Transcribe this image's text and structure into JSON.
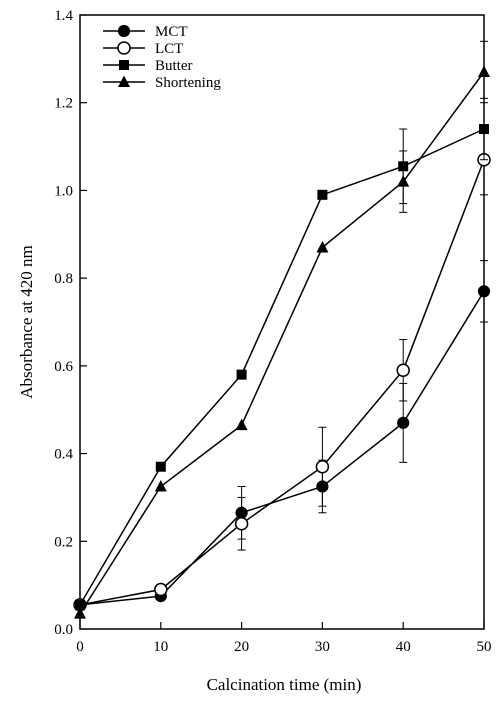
{
  "chart_data": {
    "type": "line",
    "title": "",
    "xlabel": "Calcination time (min)",
    "ylabel": "Absorbance at 420 nm",
    "xlim": [
      0,
      50
    ],
    "ylim": [
      0.0,
      1.4
    ],
    "x_ticks": [
      "0",
      "10",
      "20",
      "30",
      "40",
      "50"
    ],
    "y_ticks": [
      "0.0",
      "0.2",
      "0.4",
      "0.6",
      "0.8",
      "1.0",
      "1.2",
      "1.4"
    ],
    "grid": false,
    "legend_position": "top-left",
    "x": [
      0,
      10,
      20,
      30,
      40,
      50
    ],
    "series": [
      {
        "name": "MCT",
        "marker": "filled-circle",
        "values": [
          0.055,
          0.075,
          0.265,
          0.325,
          0.47,
          0.77
        ],
        "errors": [
          null,
          null,
          0.06,
          0.06,
          0.09,
          0.07
        ]
      },
      {
        "name": "LCT",
        "marker": "open-circle",
        "values": [
          0.055,
          0.09,
          0.24,
          0.37,
          0.59,
          1.07
        ],
        "errors": [
          null,
          null,
          0.06,
          0.09,
          0.07,
          0.08
        ]
      },
      {
        "name": "Butter",
        "marker": "filled-square",
        "values": [
          0.055,
          0.37,
          0.58,
          0.99,
          1.055,
          1.14
        ],
        "errors": [
          null,
          null,
          null,
          null,
          0.085,
          0.07
        ]
      },
      {
        "name": "Shortening",
        "marker": "filled-triangle",
        "values": [
          0.035,
          0.325,
          0.465,
          0.87,
          1.02,
          1.27
        ],
        "errors": [
          null,
          null,
          null,
          null,
          0.07,
          0.07
        ]
      }
    ]
  }
}
